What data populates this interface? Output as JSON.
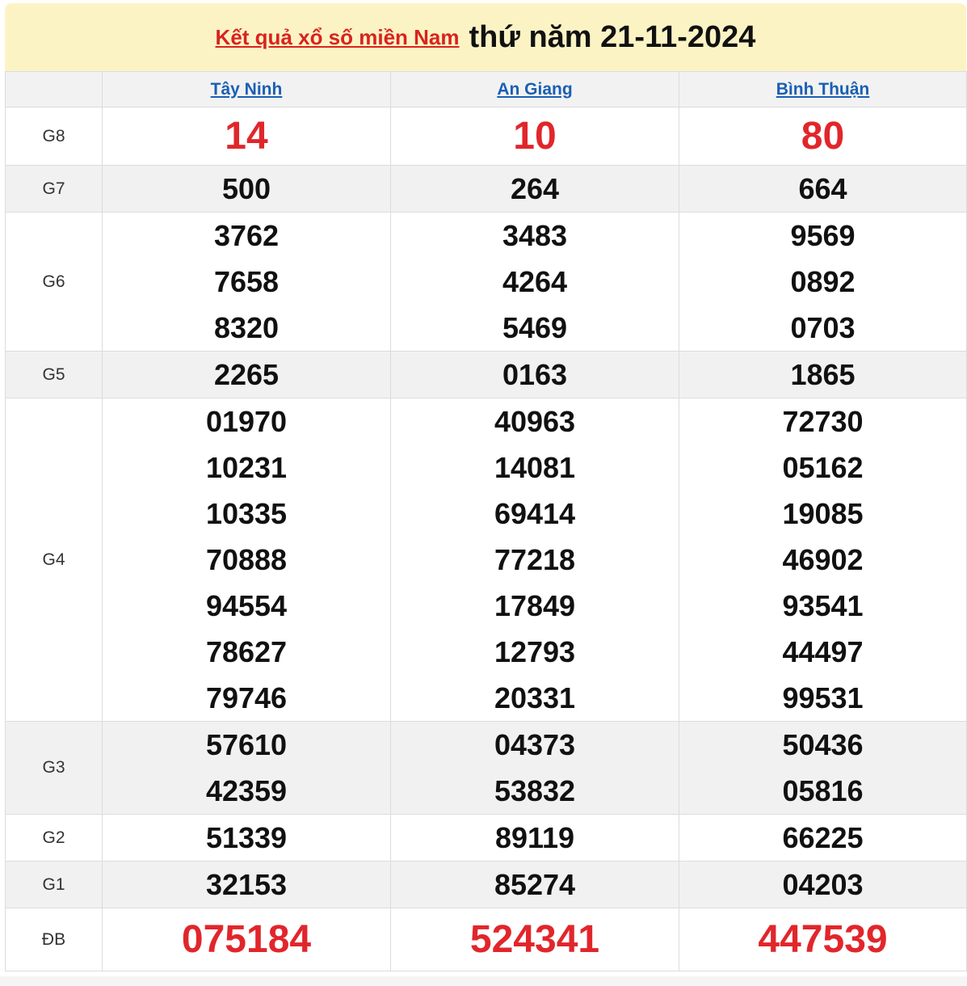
{
  "title": {
    "link": "Kết quả xổ số miền Nam",
    "date": "thứ năm 21-11-2024"
  },
  "provinces": [
    "Tây Ninh",
    "An Giang",
    "Bình Thuận"
  ],
  "colors": {
    "highlight": "#e1262b",
    "link": "#1a5fb4",
    "header_bg": "#fcf3c5"
  },
  "prizes": [
    {
      "label": "G8",
      "values": [
        [
          "14"
        ],
        [
          "10"
        ],
        [
          "80"
        ]
      ]
    },
    {
      "label": "G7",
      "values": [
        [
          "500"
        ],
        [
          "264"
        ],
        [
          "664"
        ]
      ]
    },
    {
      "label": "G6",
      "values": [
        [
          "3762",
          "7658",
          "8320"
        ],
        [
          "3483",
          "4264",
          "5469"
        ],
        [
          "9569",
          "0892",
          "0703"
        ]
      ]
    },
    {
      "label": "G5",
      "values": [
        [
          "2265"
        ],
        [
          "0163"
        ],
        [
          "1865"
        ]
      ]
    },
    {
      "label": "G4",
      "values": [
        [
          "01970",
          "10231",
          "10335",
          "70888",
          "94554",
          "78627",
          "79746"
        ],
        [
          "40963",
          "14081",
          "69414",
          "77218",
          "17849",
          "12793",
          "20331"
        ],
        [
          "72730",
          "05162",
          "19085",
          "46902",
          "93541",
          "44497",
          "99531"
        ]
      ]
    },
    {
      "label": "G3",
      "values": [
        [
          "57610",
          "42359"
        ],
        [
          "04373",
          "53832"
        ],
        [
          "50436",
          "05816"
        ]
      ]
    },
    {
      "label": "G2",
      "values": [
        [
          "51339"
        ],
        [
          "89119"
        ],
        [
          "66225"
        ]
      ]
    },
    {
      "label": "G1",
      "values": [
        [
          "32153"
        ],
        [
          "85274"
        ],
        [
          "04203"
        ]
      ]
    },
    {
      "label": "ĐB",
      "values": [
        [
          "075184"
        ],
        [
          "524341"
        ],
        [
          "447539"
        ]
      ]
    }
  ]
}
